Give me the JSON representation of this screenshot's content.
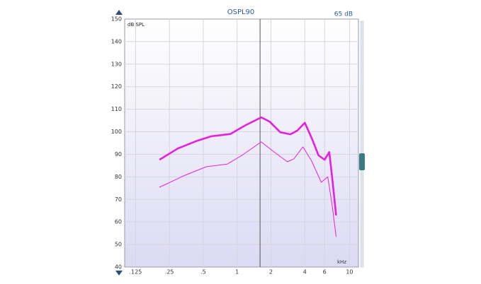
{
  "chart_data": {
    "type": "line",
    "title": "OSPL90",
    "y_label": "dB SPL",
    "x_label": "kHz",
    "xscale": "log",
    "xlim": [
      0.1,
      12
    ],
    "ylim": [
      40,
      150
    ],
    "xticks": [
      {
        "value": 0.125,
        "label": ".125"
      },
      {
        "value": 0.25,
        "label": ".25"
      },
      {
        "value": 0.5,
        "label": ".5"
      },
      1,
      2,
      4,
      6,
      10
    ],
    "yticks": [
      40,
      50,
      60,
      70,
      80,
      90,
      100,
      110,
      120,
      130,
      140,
      150
    ],
    "grid": true,
    "cursor_x": 1.6,
    "series": [
      {
        "color": "#e51fe0",
        "line_width": 2.6,
        "x": [
          0.204,
          0.297,
          0.43,
          0.59,
          0.87,
          1.17,
          1.64,
          1.95,
          2.42,
          2.98,
          3.43,
          4.0,
          4.6,
          5.3,
          6.0,
          6.6,
          7.0,
          7.6
        ],
        "values": [
          87.6,
          92.6,
          95.8,
          98,
          99,
          102.7,
          106.4,
          104.5,
          99.8,
          98.9,
          100.5,
          104,
          97.3,
          89.5,
          87.6,
          91,
          80,
          62.9
        ]
      },
      {
        "color": "#e51fe0",
        "line_width": 1,
        "x": [
          0.204,
          0.344,
          0.531,
          0.82,
          1.1,
          1.64,
          2.09,
          2.8,
          3.2,
          3.85,
          4.6,
          5.6,
          6.4,
          7.0,
          7.6
        ],
        "values": [
          75.4,
          80.7,
          84.5,
          85.7,
          89.5,
          95.5,
          91.4,
          86.7,
          88,
          93.3,
          87,
          77.6,
          80,
          67.6,
          53.4
        ]
      }
    ],
    "slider": {
      "label": "65 dB"
    }
  }
}
